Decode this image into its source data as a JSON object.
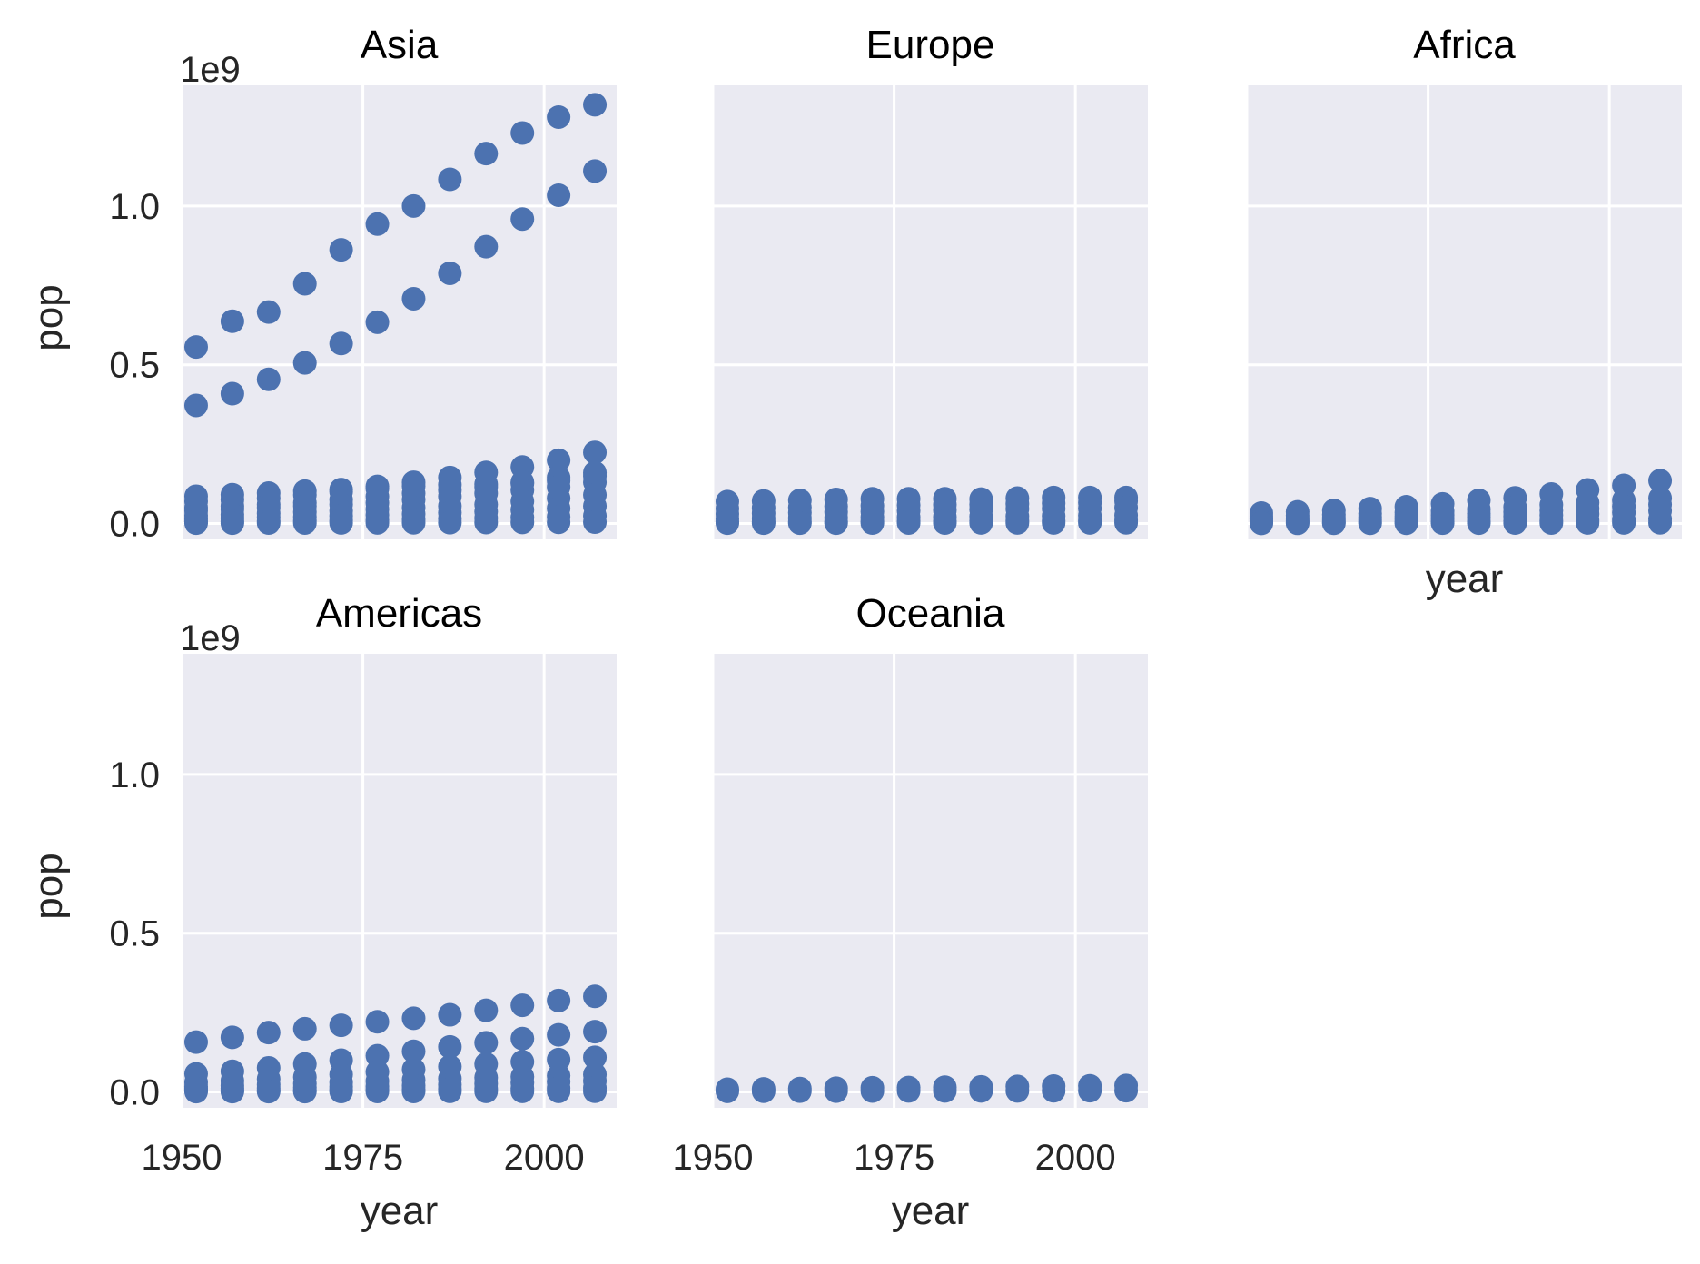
{
  "chart_data": {
    "type": "scatter",
    "layout": "facet-grid",
    "facet_var": "continent",
    "col_wrap": 3,
    "x_field": "year",
    "y_field": "pop",
    "xlabel": "year",
    "ylabel": "pop",
    "y_offset_text": "1e9",
    "sharex": true,
    "sharey": true,
    "xlim": [
      1950,
      2010
    ],
    "ylim": [
      -50000000,
      1380000000
    ],
    "xticks": [
      1950,
      1975,
      2000
    ],
    "xtick_labels": [
      "1950",
      "1975",
      "2000"
    ],
    "yticks": [
      0,
      500000000,
      1000000000
    ],
    "ytick_labels": [
      "0.0",
      "0.5",
      "1.0"
    ],
    "grid": true,
    "marker_color": "#4c72b0",
    "background_color": "#eaeaf2",
    "years": [
      1952,
      1957,
      1962,
      1967,
      1972,
      1977,
      1982,
      1987,
      1992,
      1997,
      2002,
      2007
    ],
    "facets": [
      {
        "title": "Asia",
        "series": [
          {
            "values": [
              556000000,
              637000000,
              666000000,
              755000000,
              862000000,
              943000000,
              1000000000,
              1084000000,
              1165000000,
              1230000000,
              1280000000,
              1319000000
            ]
          },
          {
            "values": [
              372000000,
              409000000,
              454000000,
              506000000,
              567000000,
              634000000,
              708000000,
              788000000,
              872000000,
              959000000,
              1034000000,
              1110000000
            ]
          },
          {
            "values": [
              86000000,
              91000000,
              96000000,
              102000000,
              107000000,
              117000000,
              130000000,
              145000000,
              161000000,
              178000000,
              199000000,
              224000000
            ]
          },
          {
            "values": [
              70000000,
              75000000,
              80000000,
              90000000,
              100000000,
              110000000,
              118000000,
              122000000,
              124000000,
              126000000,
              135000000,
              160000000
            ]
          },
          {
            "values": [
              50000000,
              55000000,
              60000000,
              65000000,
              75000000,
              85000000,
              95000000,
              105000000,
              115000000,
              130000000,
              145000000,
              150000000
            ]
          },
          {
            "values": [
              40000000,
              45000000,
              50000000,
              55000000,
              60000000,
              65000000,
              75000000,
              85000000,
              95000000,
              105000000,
              115000000,
              130000000
            ]
          },
          {
            "values": [
              25000000,
              28000000,
              32000000,
              36000000,
              40000000,
              45000000,
              50000000,
              55000000,
              60000000,
              70000000,
              80000000,
              90000000
            ]
          },
          {
            "values": [
              15000000,
              17000000,
              19000000,
              21000000,
              24000000,
              27000000,
              30000000,
              34000000,
              38000000,
              43000000,
              48000000,
              55000000
            ]
          },
          {
            "values": [
              6000000,
              7000000,
              8000000,
              9000000,
              10000000,
              11000000,
              13000000,
              15000000,
              17000000,
              19000000,
              21000000,
              24000000
            ]
          },
          {
            "values": [
              1000000,
              1200000,
              1400000,
              1600000,
              1800000,
              2000000,
              2300000,
              2600000,
              3000000,
              3400000,
              3800000,
              4200000
            ]
          }
        ]
      },
      {
        "title": "Europe",
        "series": [
          {
            "values": [
              69000000,
              71000000,
              73000000,
              76000000,
              78000000,
              78000000,
              78000000,
              77000000,
              80000000,
              82000000,
              82000000,
              82000000
            ]
          },
          {
            "values": [
              47000000,
              49000000,
              51000000,
              54000000,
              56000000,
              58000000,
              59000000,
              60000000,
              62000000,
              64000000,
              66000000,
              71000000
            ]
          },
          {
            "values": [
              30000000,
              32000000,
              34000000,
              36000000,
              38000000,
              40000000,
              42000000,
              44000000,
              46000000,
              47000000,
              48000000,
              50000000
            ]
          },
          {
            "values": [
              15000000,
              16000000,
              17000000,
              18000000,
              19000000,
              20000000,
              21000000,
              22000000,
              23000000,
              24000000,
              25000000,
              26000000
            ]
          },
          {
            "values": [
              5000000,
              5500000,
              6000000,
              6500000,
              7000000,
              7500000,
              8000000,
              8500000,
              9000000,
              9500000,
              10000000,
              10500000
            ]
          },
          {
            "values": [
              1000000,
              1100000,
              1200000,
              1300000,
              1400000,
              1500000,
              1600000,
              1700000,
              1800000,
              1900000,
              2000000,
              2100000
            ]
          }
        ]
      },
      {
        "title": "Africa",
        "series": [
          {
            "values": [
              33000000,
              37000000,
              41000000,
              47000000,
              53000000,
              62000000,
              73000000,
              81000000,
              93000000,
              106000000,
              120000000,
              135000000
            ]
          },
          {
            "values": [
              22000000,
              25000000,
              28000000,
              31000000,
              35000000,
              39000000,
              45000000,
              52000000,
              59000000,
              66000000,
              73000000,
              80000000
            ]
          },
          {
            "values": [
              14000000,
              16000000,
              18000000,
              20000000,
              23000000,
              27000000,
              31000000,
              36000000,
              41000000,
              47000000,
              54000000,
              60000000
            ]
          },
          {
            "values": [
              8000000,
              9000000,
              10000000,
              12000000,
              14000000,
              16000000,
              19000000,
              22000000,
              26000000,
              30000000,
              35000000,
              40000000
            ]
          },
          {
            "values": [
              3000000,
              3500000,
              4000000,
              4600000,
              5200000,
              6000000,
              7000000,
              8000000,
              9000000,
              10000000,
              12000000,
              14000000
            ]
          },
          {
            "values": [
              500000,
              600000,
              700000,
              800000,
              900000,
              1000000,
              1200000,
              1400000,
              1600000,
              1800000,
              2000000,
              2200000
            ]
          }
        ]
      },
      {
        "title": "Americas",
        "series": [
          {
            "values": [
              157000000,
              172000000,
              187000000,
              199000000,
              210000000,
              221000000,
              232000000,
              243000000,
              257000000,
              273000000,
              288000000,
              301000000
            ]
          },
          {
            "values": [
              57000000,
              65000000,
              76000000,
              88000000,
              100000000,
              114000000,
              128000000,
              142000000,
              155000000,
              168000000,
              180000000,
              190000000
            ]
          },
          {
            "values": [
              30000000,
              35000000,
              41000000,
              47000000,
              55000000,
              63000000,
              71000000,
              80000000,
              88000000,
              95000000,
              102000000,
              109000000
            ]
          },
          {
            "values": [
              17000000,
              20000000,
              23000000,
              26000000,
              30000000,
              34000000,
              38000000,
              42000000,
              45000000,
              48000000,
              51000000,
              55000000
            ]
          },
          {
            "values": [
              10000000,
              11000000,
              12000000,
              14000000,
              16000000,
              18000000,
              20000000,
              23000000,
              26000000,
              29000000,
              32000000,
              35000000
            ]
          },
          {
            "values": [
              4000000,
              4500000,
              5000000,
              5500000,
              6000000,
              7000000,
              8000000,
              9000000,
              10000000,
              11000000,
              12000000,
              13000000
            ]
          },
          {
            "values": [
              1000000,
              1100000,
              1200000,
              1300000,
              1400000,
              1500000,
              1600000,
              1700000,
              1800000,
              1900000,
              2000000,
              2100000
            ]
          }
        ]
      },
      {
        "title": "Oceania",
        "series": [
          {
            "values": [
              8700000,
              9700000,
              10800000,
              11900000,
              13200000,
              14100000,
              15200000,
              16300000,
              17500000,
              18600000,
              19500000,
              20400000
            ]
          },
          {
            "values": [
              1990000,
              2140000,
              2490000,
              2730000,
              2930000,
              3160000,
              3210000,
              3320000,
              3440000,
              3680000,
              3910000,
              4120000
            ]
          }
        ]
      }
    ]
  }
}
